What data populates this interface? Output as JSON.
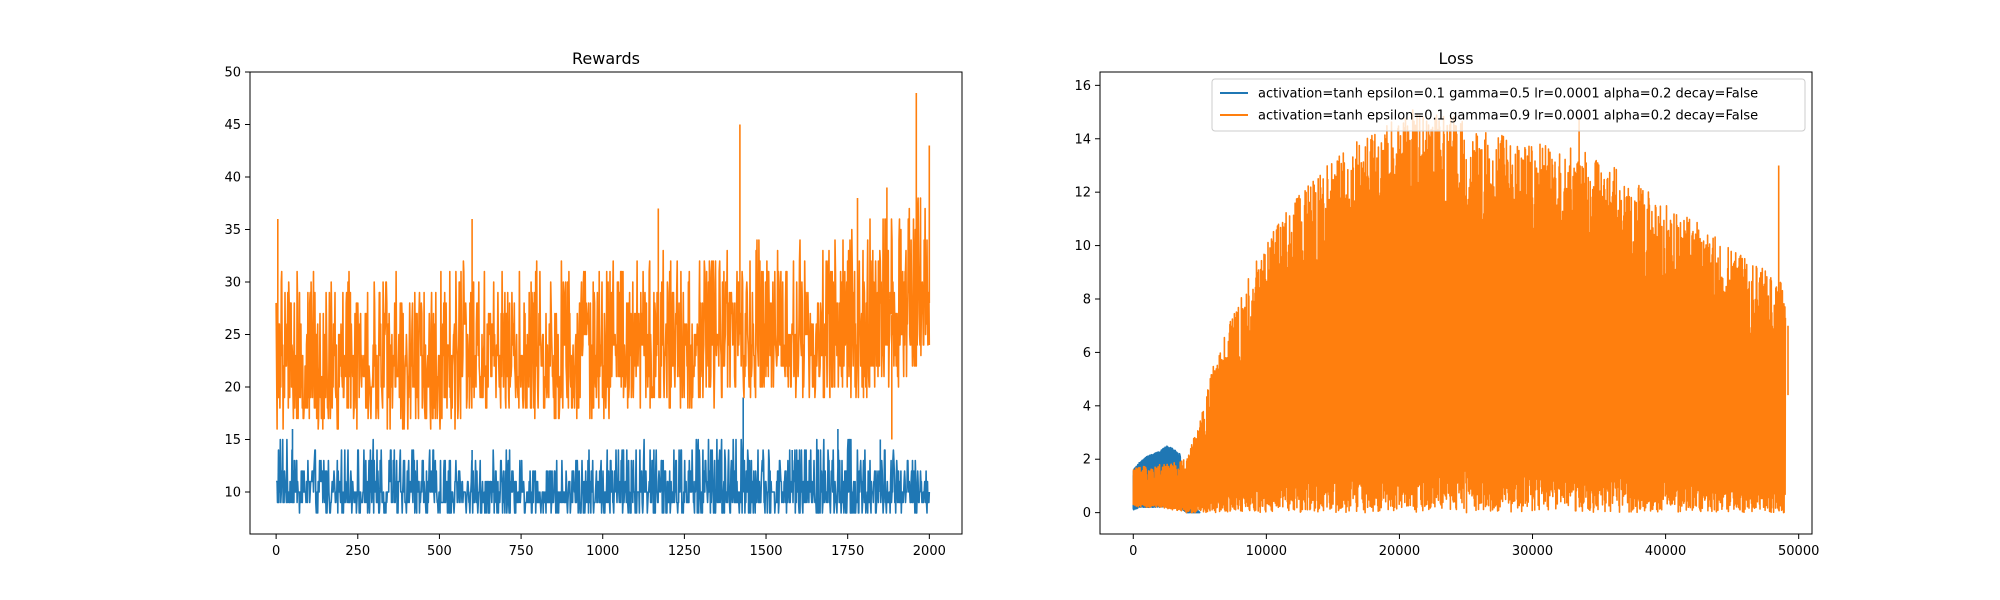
{
  "colors": {
    "series_0": "#1f77b4",
    "series_1": "#ff7f0e",
    "axes": "#000000",
    "background": "#ffffff"
  },
  "chart_data": [
    {
      "type": "line",
      "title": "Rewards",
      "xlabel": "",
      "ylabel": "",
      "xlim": [
        -80,
        2100
      ],
      "ylim": [
        6,
        50
      ],
      "x_ticks": [
        0,
        250,
        500,
        750,
        1000,
        1250,
        1500,
        1750,
        2000
      ],
      "x_tick_labels": [
        "0",
        "250",
        "500",
        "750",
        "1000",
        "1250",
        "1500",
        "1750",
        "2000"
      ],
      "y_ticks": [
        10,
        15,
        20,
        25,
        30,
        35,
        40,
        45,
        50
      ],
      "y_tick_labels": [
        "10",
        "15",
        "20",
        "25",
        "30",
        "35",
        "40",
        "45",
        "50"
      ],
      "grid": false,
      "legend": null,
      "series": [
        {
          "color": "#1f77b4",
          "x": [
            0,
            100,
            200,
            300,
            400,
            500,
            600,
            700,
            800,
            900,
            1000,
            1100,
            1200,
            1300,
            1400,
            1500,
            1600,
            1700,
            1800,
            1900,
            2000
          ],
          "y": [
            10,
            10,
            10,
            10,
            10,
            10,
            10,
            10,
            10,
            10,
            10,
            10,
            10,
            10,
            10,
            10,
            10,
            10,
            10,
            10,
            10
          ],
          "band_low": [
            9,
            8,
            8,
            8,
            8,
            8,
            8,
            8,
            8,
            8,
            8,
            8,
            8,
            8,
            8,
            8,
            8,
            8,
            8,
            8,
            8
          ],
          "band_high": [
            16,
            14,
            14,
            15,
            14,
            14,
            13,
            14,
            14,
            14,
            14,
            15,
            14,
            15,
            16,
            14,
            14,
            16,
            15,
            14,
            12
          ],
          "spikes": [
            [
              50,
              16
            ],
            [
              600,
              14
            ],
            [
              1430,
              19
            ],
            [
              1580,
              14
            ],
            [
              1720,
              16
            ],
            [
              1850,
              15
            ]
          ]
        },
        {
          "color": "#ff7f0e",
          "x": [
            0,
            100,
            200,
            300,
            400,
            500,
            600,
            700,
            800,
            900,
            1000,
            1100,
            1200,
            1300,
            1400,
            1500,
            1600,
            1700,
            1800,
            1900,
            2000
          ],
          "y": [
            22,
            22,
            22,
            22,
            22,
            23,
            23,
            23,
            23,
            23,
            24,
            24,
            24,
            24,
            25,
            25,
            25,
            26,
            26,
            27,
            28
          ],
          "band_low": [
            16,
            16,
            16,
            16,
            16,
            16,
            17,
            17,
            17,
            17,
            17,
            18,
            18,
            18,
            19,
            19,
            19,
            19,
            19,
            20,
            23
          ],
          "band_high": [
            31,
            31,
            31,
            31,
            31,
            31,
            32,
            31,
            32,
            32,
            32,
            32,
            33,
            33,
            33,
            34,
            34,
            34,
            36,
            36,
            39
          ],
          "spikes": [
            [
              5,
              36
            ],
            [
              600,
              36
            ],
            [
              1170,
              37
            ],
            [
              1420,
              45
            ],
            [
              1780,
              38
            ],
            [
              1870,
              39
            ],
            [
              1960,
              48
            ],
            [
              2000,
              43
            ],
            [
              1885,
              15
            ]
          ]
        }
      ]
    },
    {
      "type": "line",
      "title": "Loss",
      "xlabel": "",
      "ylabel": "",
      "xlim": [
        -2500,
        51000
      ],
      "ylim": [
        -0.8,
        16.5
      ],
      "x_ticks": [
        0,
        10000,
        20000,
        30000,
        40000,
        50000
      ],
      "x_tick_labels": [
        "0",
        "10000",
        "20000",
        "30000",
        "40000",
        "50000"
      ],
      "y_ticks": [
        0,
        2,
        4,
        6,
        8,
        10,
        12,
        14,
        16
      ],
      "y_tick_labels": [
        "0",
        "2",
        "4",
        "6",
        "8",
        "10",
        "12",
        "14",
        "16"
      ],
      "grid": false,
      "legend": "upper right",
      "series": [
        {
          "name": "activation=tanh epsilon=0.1 gamma=0.5 lr=0.0001 alpha=0.2 decay=False",
          "color": "#1f77b4",
          "x": [
            0,
            500,
            1000,
            1500,
            2000,
            2500,
            3000,
            3500,
            4000,
            5000
          ],
          "y": [
            1.2,
            1.5,
            1.6,
            1.7,
            1.8,
            1.9,
            1.9,
            1.6,
            0.3,
            0.0
          ],
          "band_low": [
            0.1,
            0.2,
            0.2,
            0.2,
            0.2,
            0.2,
            0.2,
            0.2,
            0.0,
            0.0
          ],
          "band_high": [
            1.6,
            1.9,
            2.1,
            2.2,
            2.3,
            2.5,
            2.4,
            2.2,
            0.5,
            0.0
          ]
        },
        {
          "name": "activation=tanh epsilon=0.1 gamma=0.9 lr=0.0001 alpha=0.2 decay=False",
          "color": "#ff7f0e",
          "x": [
            0,
            2000,
            4000,
            5000,
            6000,
            7000,
            8000,
            9000,
            10000,
            11000,
            12000,
            13000,
            14000,
            15000,
            16000,
            17000,
            18000,
            19000,
            20000,
            22000,
            24000,
            26000,
            28000,
            30000,
            32000,
            34000,
            36000,
            38000,
            40000,
            42000,
            44000,
            46000,
            48000,
            49000
          ],
          "y": [
            0.8,
            1.0,
            1.2,
            1.8,
            2.8,
            3.8,
            4.6,
            5.4,
            6.0,
            6.6,
            7.0,
            7.4,
            7.7,
            7.9,
            8.1,
            8.3,
            8.4,
            8.5,
            8.6,
            8.7,
            8.7,
            8.7,
            8.6,
            8.5,
            8.3,
            8.1,
            7.8,
            7.4,
            7.0,
            6.5,
            6.0,
            5.4,
            4.8,
            4.4
          ],
          "band_low": [
            0.2,
            0.2,
            0.0,
            0.0,
            0.0,
            0.0,
            0.0,
            0.0,
            0.0,
            0.0,
            0.0,
            0.0,
            0.0,
            0.0,
            0.0,
            0.0,
            0.0,
            0.0,
            0.0,
            0.0,
            0.0,
            0.0,
            0.0,
            0.0,
            0.0,
            0.0,
            0.0,
            0.0,
            0.0,
            0.0,
            0.0,
            0.0,
            0.0,
            0.0
          ],
          "band_high": [
            1.7,
            1.8,
            2.0,
            3.5,
            5.5,
            6.8,
            8.0,
            9.2,
            10.2,
            11.0,
            11.6,
            12.2,
            12.8,
            13.2,
            13.6,
            14.0,
            14.3,
            14.6,
            14.8,
            15.0,
            14.9,
            14.6,
            14.3,
            14.0,
            13.8,
            13.5,
            13.0,
            12.3,
            11.6,
            11.0,
            10.3,
            9.5,
            9.0,
            8.5
          ],
          "spikes": [
            [
              21000,
              15.1
            ],
            [
              33500,
              14.8
            ],
            [
              48500,
              13.0
            ],
            [
              49200,
              7.0
            ]
          ]
        }
      ]
    }
  ]
}
